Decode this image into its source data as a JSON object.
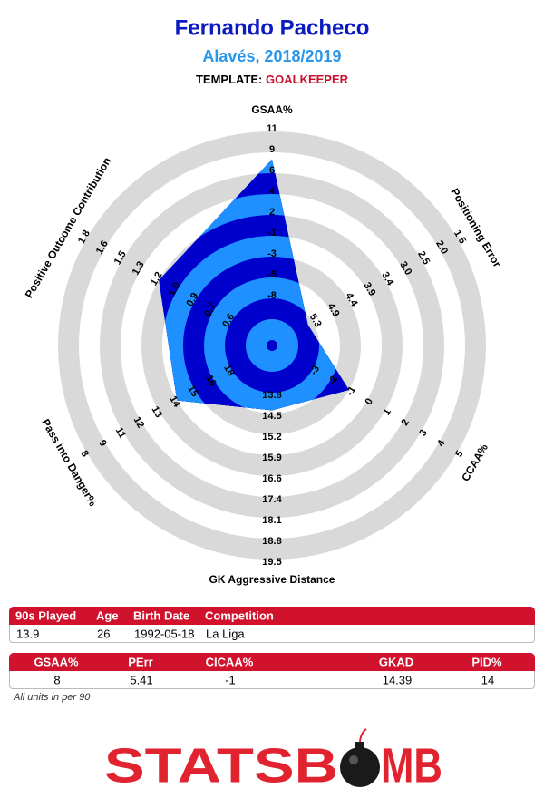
{
  "header": {
    "title": "Fernando Pacheco",
    "subtitle": "Alavés, 2018/2019",
    "template_label": "TEMPLATE:",
    "template": "GOALKEEPER"
  },
  "chart_data": {
    "type": "radar",
    "categories": [
      "GSAA%",
      "Positioning Error",
      "CCAA%",
      "GK Aggressive Distance",
      "Pass into Danger%",
      "Positive Outcome Contribution"
    ],
    "values": [
      8,
      5.41,
      -1,
      14.39,
      14,
      1.2
    ],
    "axis_ticks": [
      [
        -8,
        -5,
        -3,
        -1,
        2,
        4,
        6,
        9,
        11
      ],
      [
        5.3,
        4.9,
        4.4,
        3.9,
        3.4,
        {
          "value": 3,
          "label": "3.0"
        },
        2.5,
        {
          "value": 2,
          "label": "2.0"
        },
        1.5
      ],
      [
        -3,
        -2,
        -1,
        0,
        1,
        2,
        3,
        4,
        5
      ],
      [
        13.8,
        14.5,
        15.2,
        15.9,
        16.6,
        17.4,
        18.1,
        18.8,
        19.5
      ],
      [
        18,
        16,
        15,
        14,
        13,
        12,
        11,
        9,
        8
      ],
      [
        0.6,
        0.7,
        0.9,
        {
          "value": 1,
          "label": "1.0"
        },
        1.2,
        1.3,
        1.5,
        1.6,
        1.8
      ]
    ],
    "colors": [
      "#0000cd",
      "#1e90ff"
    ],
    "ring_color": "#d9d9d9"
  },
  "tables": [
    {
      "columns": [
        "90s Played",
        "Age",
        "Birth Date",
        "Competition"
      ],
      "rows": [
        [
          13.9,
          26,
          "1992-05-18",
          "La Liga"
        ]
      ]
    },
    {
      "columns": [
        "GSAA%",
        "PErr",
        "CICAA%",
        "GKAD",
        "PID%"
      ],
      "rows": [
        [
          8,
          5.41,
          -1,
          14.39,
          14
        ]
      ]
    }
  ],
  "footnote": "All units in per 90",
  "logo": {
    "left": "STATSB",
    "right": "MB"
  }
}
